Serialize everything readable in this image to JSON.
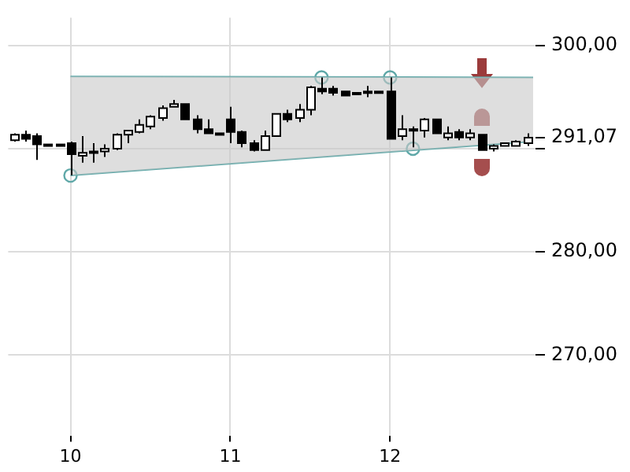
{
  "chart_data": {
    "type": "candlestick",
    "x": [
      9.643,
      9.714,
      9.786,
      9.857,
      9.929,
      10,
      10.071,
      10.143,
      10.214,
      10.286,
      10.357,
      10.429,
      10.5,
      10.571,
      10.643,
      10.714,
      10.786,
      10.857,
      10.929,
      11,
      11.071,
      11.143,
      11.214,
      11.286,
      11.357,
      11.429,
      11.5,
      11.571,
      11.643,
      11.714,
      11.786,
      11.857,
      11.929,
      12,
      12.071,
      12.143,
      12.214,
      12.286,
      12.357,
      12.429,
      12.5,
      12.571,
      12.643,
      12.714,
      12.786,
      12.857
    ],
    "ohlc": [
      [
        290.81,
        291.49,
        290.68,
        291.35
      ],
      [
        291.35,
        291.76,
        290.68,
        290.95
      ],
      [
        291.22,
        291.49,
        288.92,
        290.41
      ],
      [
        290.41,
        290.41,
        290.41,
        290.41
      ],
      [
        290.41,
        290.41,
        290.41,
        290.41
      ],
      [
        290.54,
        290.68,
        287.43,
        289.46
      ],
      [
        289.32,
        291.22,
        288.65,
        289.59
      ],
      [
        289.73,
        290.54,
        288.65,
        289.73
      ],
      [
        289.73,
        290.41,
        289.19,
        290.0
      ],
      [
        290.0,
        291.49,
        289.86,
        291.35
      ],
      [
        291.35,
        291.76,
        290.54,
        291.76
      ],
      [
        291.62,
        292.84,
        291.49,
        292.3
      ],
      [
        292.16,
        293.24,
        291.89,
        293.11
      ],
      [
        292.97,
        294.19,
        292.7,
        293.92
      ],
      [
        294.05,
        294.73,
        294.05,
        294.32
      ],
      [
        294.32,
        294.32,
        292.84,
        292.84
      ],
      [
        292.84,
        293.24,
        291.49,
        291.89
      ],
      [
        291.89,
        292.84,
        291.49,
        291.49
      ],
      [
        291.49,
        291.49,
        291.49,
        291.49
      ],
      [
        292.84,
        294.05,
        290.54,
        291.62
      ],
      [
        291.62,
        291.76,
        290.14,
        290.54
      ],
      [
        290.54,
        290.81,
        289.73,
        289.86
      ],
      [
        289.86,
        291.76,
        289.86,
        291.22
      ],
      [
        291.22,
        293.38,
        291.22,
        293.38
      ],
      [
        293.38,
        293.78,
        292.57,
        292.84
      ],
      [
        292.97,
        294.32,
        292.57,
        293.78
      ],
      [
        293.78,
        296.08,
        293.24,
        295.95
      ],
      [
        295.81,
        296.89,
        295.27,
        295.54
      ],
      [
        295.81,
        296.08,
        295.14,
        295.41
      ],
      [
        295.54,
        295.54,
        295.14,
        295.14
      ],
      [
        295.27,
        295.41,
        295.27,
        295.41
      ],
      [
        295.54,
        296.08,
        295.0,
        295.54
      ],
      [
        295.54,
        295.54,
        295.54,
        295.54
      ],
      [
        295.54,
        296.89,
        290.95,
        290.95
      ],
      [
        291.22,
        293.24,
        290.81,
        291.89
      ],
      [
        291.89,
        292.16,
        290.14,
        291.89
      ],
      [
        291.76,
        292.97,
        291.08,
        292.84
      ],
      [
        292.84,
        292.84,
        291.49,
        291.49
      ],
      [
        291.08,
        292.16,
        290.81,
        291.49
      ],
      [
        291.62,
        291.89,
        290.81,
        291.08
      ],
      [
        291.08,
        291.89,
        290.81,
        291.49
      ],
      [
        291.35,
        291.35,
        289.86,
        289.86
      ],
      [
        290.0,
        290.41,
        289.73,
        290.27
      ],
      [
        290.27,
        290.54,
        290.27,
        290.54
      ],
      [
        290.27,
        290.81,
        290.27,
        290.68
      ],
      [
        290.54,
        291.49,
        290.27,
        291.07
      ]
    ],
    "xlim": [
      9.61,
      12.91
    ],
    "xticks": [
      10,
      11,
      12
    ],
    "ylim": [
      262.2,
      302.7
    ],
    "yticks": [
      {
        "value": 270,
        "label": "270,00"
      },
      {
        "value": 280,
        "label": "280,00"
      },
      {
        "value": 290,
        "label": null
      },
      {
        "value": 291.07,
        "label": "291,07"
      },
      {
        "value": 300,
        "label": "300,00"
      }
    ],
    "grid": true,
    "series": [
      {
        "type": "line",
        "color": "#5fa8a8",
        "x": [
          10,
          12.895
        ],
        "values": [
          297,
          296.9
        ],
        "lower": [
          287.4,
          290.7
        ],
        "upper": [
          297,
          296.9
        ]
      },
      {
        "type": "line",
        "color": "#5fa8a8",
        "x": [
          10,
          12.895
        ],
        "values": [
          287.4,
          290.7
        ]
      },
      {
        "type": "scatter",
        "color": "#5fa8a8",
        "marker": "circle",
        "x": [
          10,
          11.571,
          12,
          12.143
        ],
        "values": [
          287.4,
          296.9,
          296.9,
          290
        ]
      }
    ]
  }
}
